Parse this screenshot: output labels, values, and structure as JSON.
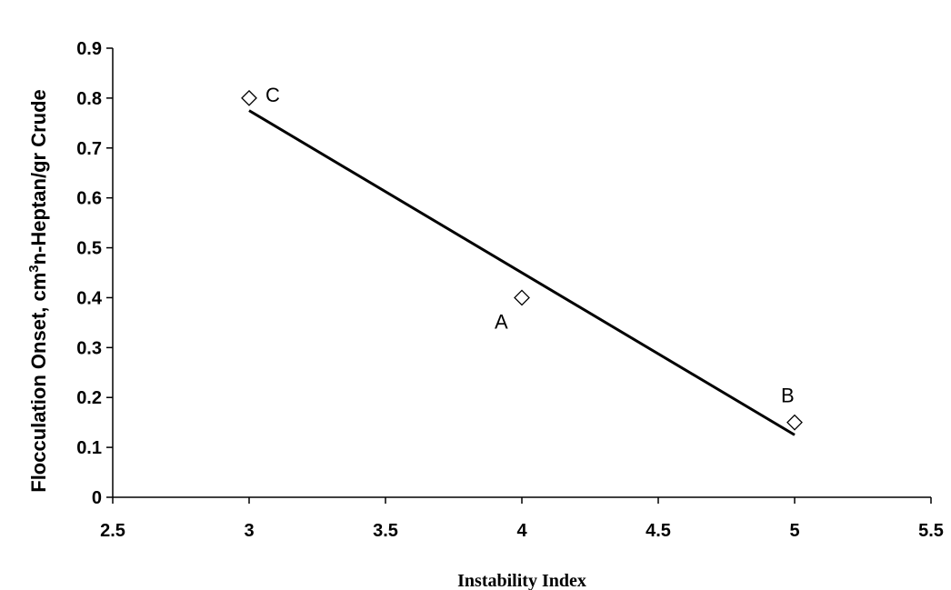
{
  "chart_data": {
    "type": "scatter",
    "xlabel": "Instability Index",
    "ylabel": "Flocculation Onset, cm3n-Heptan/gr Crude",
    "ylabel_parts": {
      "before": "Flocculation Onset, cm",
      "superscript": "3",
      "after": "n-Heptan/gr Crude"
    },
    "xlim": [
      2.5,
      5.5
    ],
    "ylim": [
      0,
      0.9
    ],
    "x_ticks": [
      "2.5",
      "3",
      "3.5",
      "4",
      "4.5",
      "5",
      "5.5"
    ],
    "y_ticks": [
      "0",
      "0.1",
      "0.2",
      "0.3",
      "0.4",
      "0.5",
      "0.6",
      "0.7",
      "0.8",
      "0.9"
    ],
    "grid": false,
    "legend": "none",
    "points": [
      {
        "label": "C",
        "x": 3,
        "y": 0.8
      },
      {
        "label": "A",
        "x": 4,
        "y": 0.4
      },
      {
        "label": "B",
        "x": 5,
        "y": 0.15
      }
    ],
    "trendline": {
      "x": [
        3,
        5
      ],
      "y": [
        0.775,
        0.125
      ]
    },
    "marker": "open-diamond",
    "line_color": "#000000"
  }
}
